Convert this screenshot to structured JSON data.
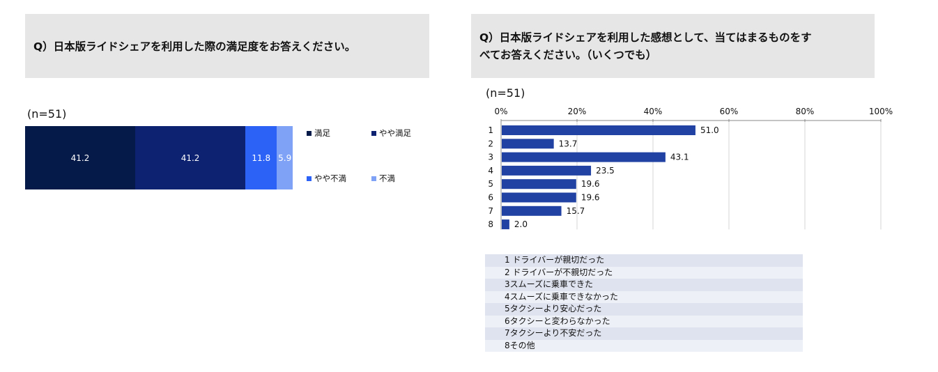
{
  "left_panel": {
    "question": "Q）日本版ライドシェアを利用した際の満足度をお答えください。",
    "n_label": "(n=51)"
  },
  "right_panel": {
    "question_line1": "Q）日本版ライドシェアを利用した感想として、当てはまるものをす",
    "question_line2": "べてお答えください。（いくつでも）",
    "n_label": "(n=51)"
  },
  "chart_data": [
    {
      "type": "bar",
      "orientation": "horizontal-stacked-100",
      "n_label": "(n=51)",
      "series": [
        {
          "name": "満足",
          "values": [
            41.2
          ],
          "color": "#061a4a"
        },
        {
          "name": "やや満足",
          "values": [
            41.2
          ],
          "color": "#0d2270"
        },
        {
          "name": "やや不満",
          "values": [
            11.8
          ],
          "color": "#2c62f5"
        },
        {
          "name": "不満",
          "values": [
            5.9
          ],
          "color": "#7fa2f7"
        }
      ],
      "legend_position": "right"
    },
    {
      "type": "bar",
      "orientation": "horizontal",
      "n_label": "(n=51)",
      "categories": [
        "1",
        "2",
        "3",
        "4",
        "5",
        "6",
        "7",
        "8"
      ],
      "values": [
        51.0,
        13.7,
        43.1,
        23.5,
        19.6,
        19.6,
        15.7,
        2.0
      ],
      "value_labels": [
        "51.0",
        "13.7",
        "43.1",
        "23.5",
        "19.6",
        "19.6",
        "15.7",
        "2.0"
      ],
      "xlim": [
        0,
        100
      ],
      "xticks": [
        "0%",
        "20%",
        "40%",
        "60%",
        "80%",
        "100%"
      ],
      "grid": true,
      "bar_color": "#2142a3",
      "category_key": [
        "1 ドライバーが親切だった",
        "2 ドライバーが不親切だった",
        "3スムーズに乗車できた",
        "4スムーズに乗車できなかった",
        "5タクシーより安心だった",
        "6タクシーと変わらなかった",
        "7タクシーより不安だった",
        "8その他"
      ]
    }
  ]
}
